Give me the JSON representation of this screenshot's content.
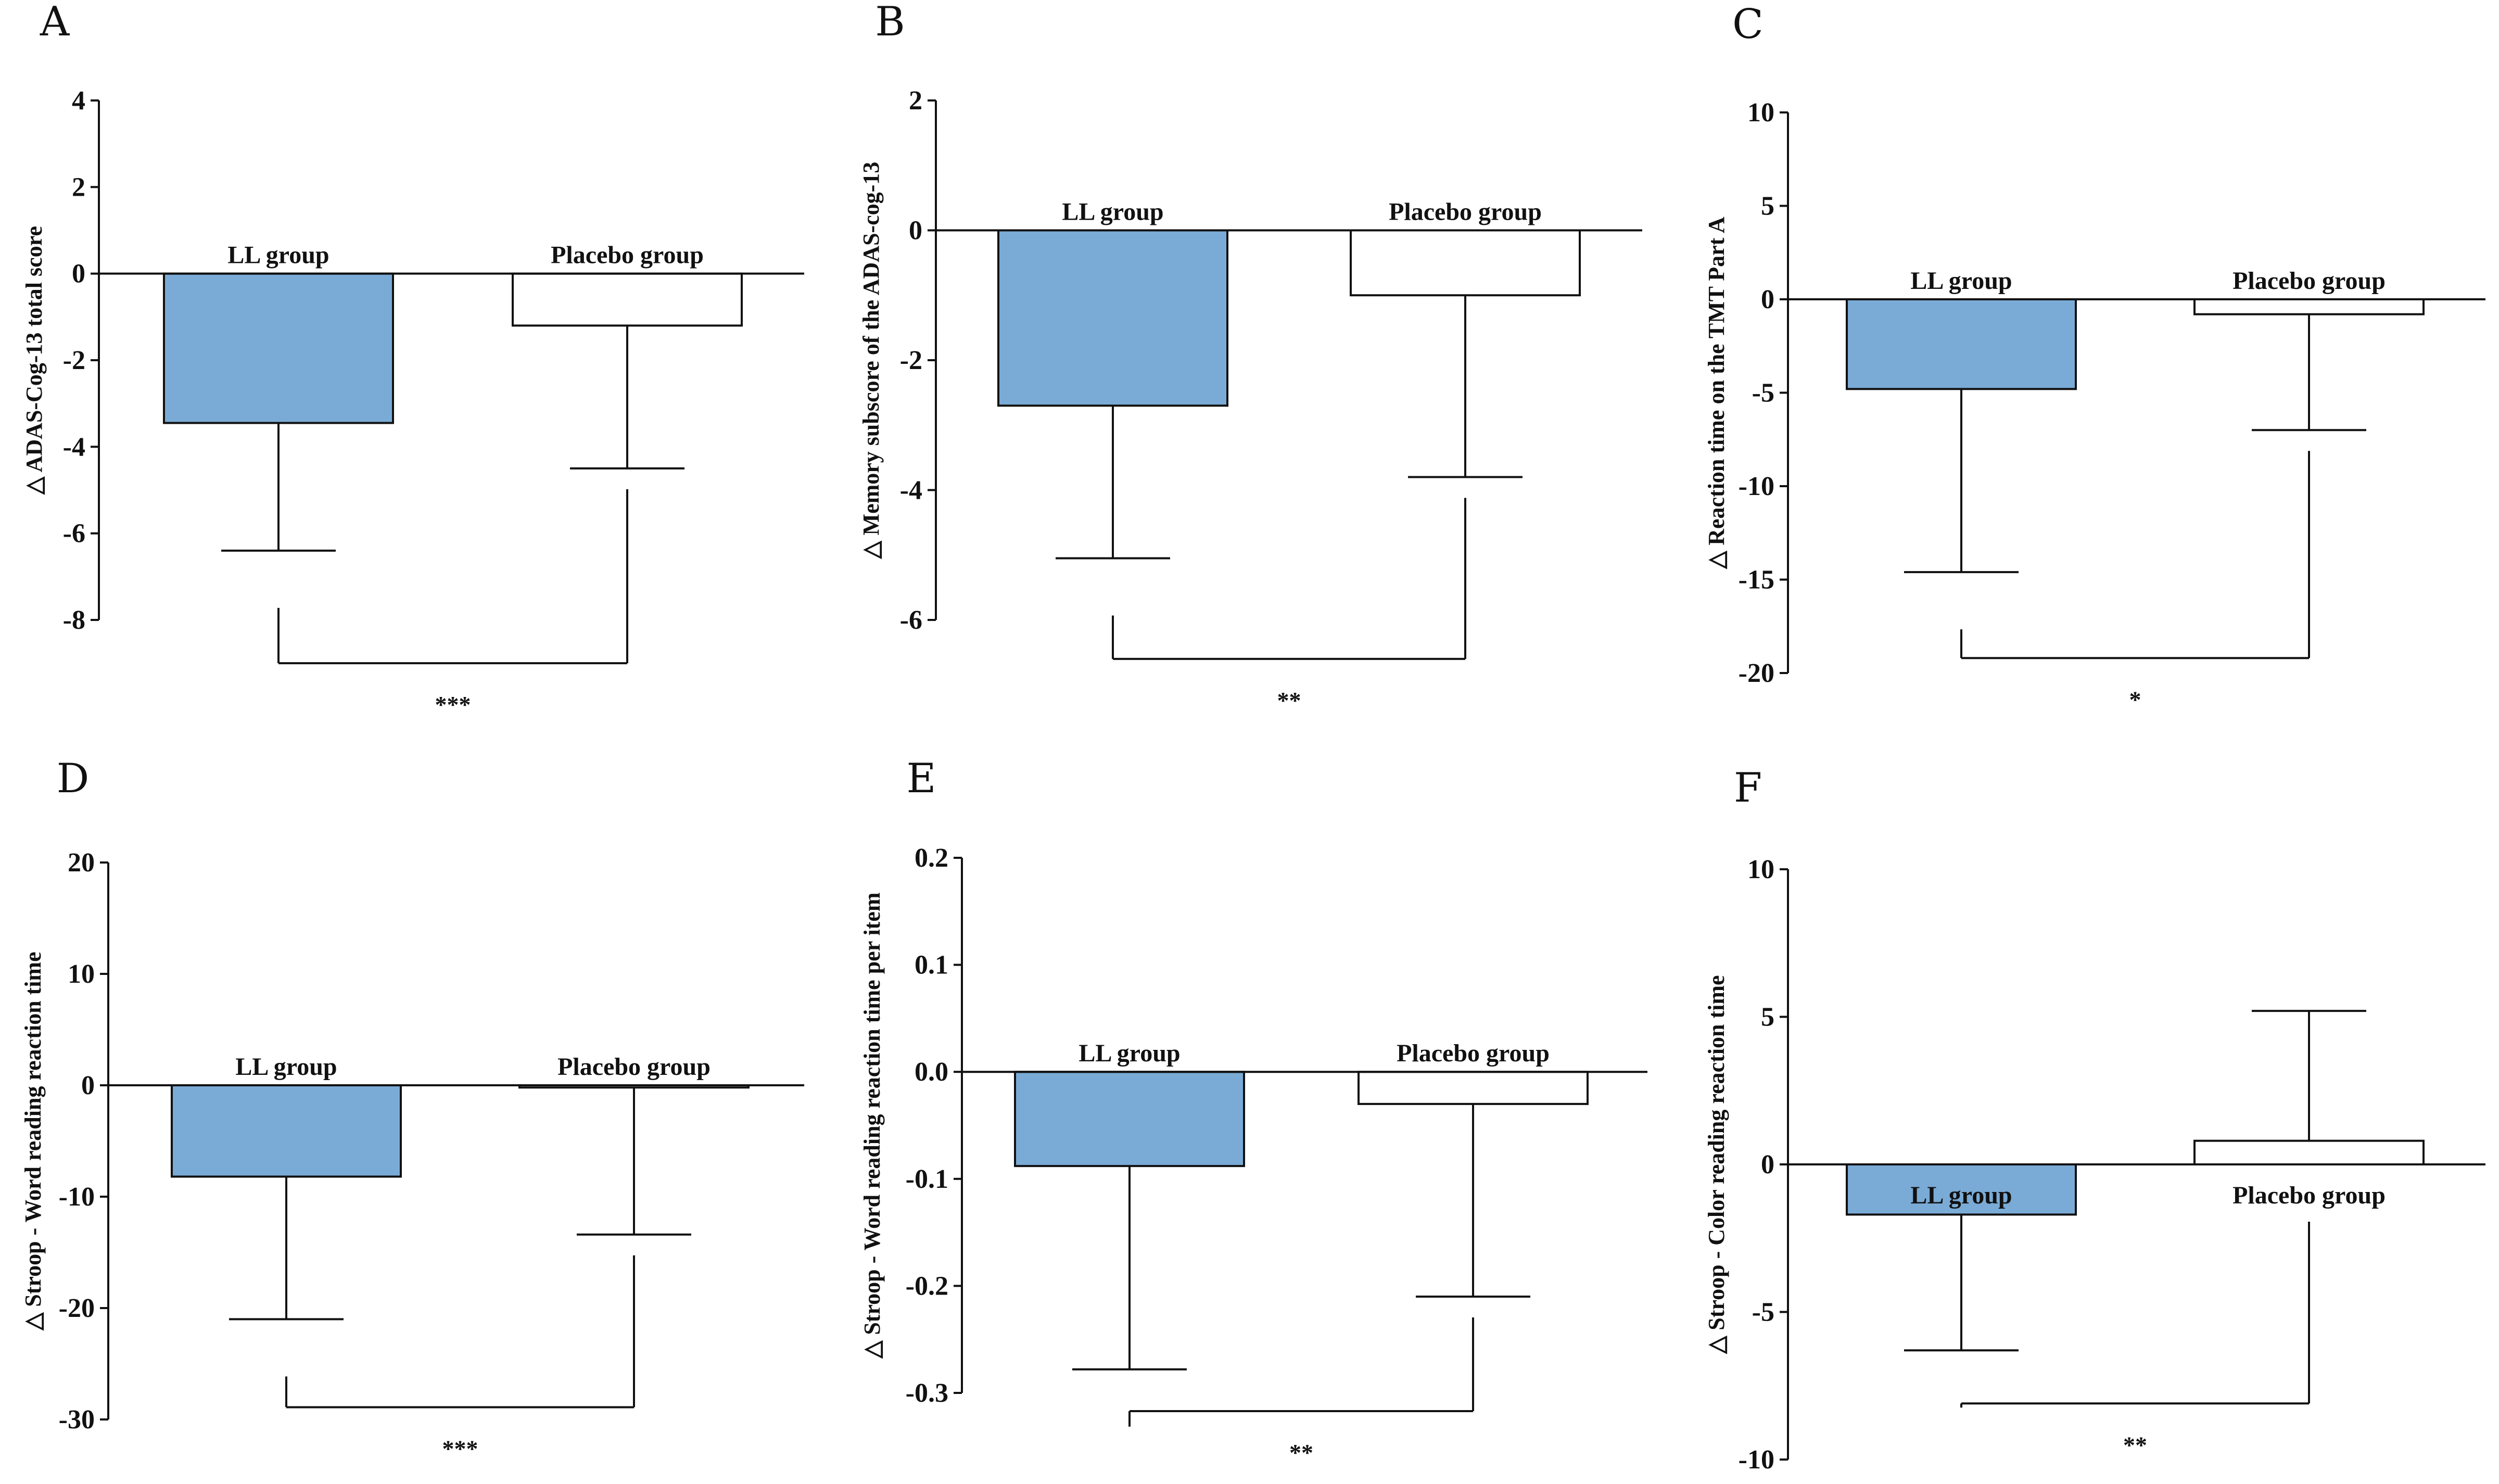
{
  "colors": {
    "ll_fill": "#7aabd6",
    "placebo_fill": "#ffffff",
    "stroke": "#111111"
  },
  "chart_data": [
    {
      "panel": "A",
      "type": "bar",
      "ylabel": "△ ADAS-Cog-13 total score",
      "ylim": [
        -8,
        4
      ],
      "yticks": [
        4,
        2,
        0,
        -2,
        -4,
        -6,
        -8
      ],
      "categories": [
        "LL group",
        "Placebo group"
      ],
      "values": [
        -3.45,
        -1.2
      ],
      "errors": [
        2.95,
        3.3
      ],
      "significance": "***",
      "bracket_y": -9.0
    },
    {
      "panel": "B",
      "type": "bar",
      "ylabel": "△ Memory subscore of the ADAS-cog-13",
      "ylim": [
        -6,
        2
      ],
      "yticks": [
        2,
        0,
        -2,
        -4,
        -6
      ],
      "categories": [
        "LL group",
        "Placebo group"
      ],
      "values": [
        -2.7,
        -1.0
      ],
      "errors": [
        2.35,
        2.8
      ],
      "significance": "**",
      "bracket_y": -6.6
    },
    {
      "panel": "C",
      "type": "bar",
      "ylabel": "△ Reaction time on the TMT Part A",
      "ylim": [
        -20,
        10
      ],
      "yticks": [
        10,
        5,
        0,
        -5,
        -10,
        -15,
        -20
      ],
      "categories": [
        "LL group",
        "Placebo group"
      ],
      "values": [
        -4.8,
        -0.8
      ],
      "errors": [
        9.8,
        6.2
      ],
      "significance": "*",
      "bracket_y": -19.2
    },
    {
      "panel": "D",
      "type": "bar",
      "ylabel": "△ Stroop - Word reading reaction time",
      "ylim": [
        -30,
        20
      ],
      "yticks": [
        20,
        10,
        0,
        -10,
        -20,
        -30
      ],
      "categories": [
        "LL group",
        "Placebo group"
      ],
      "values": [
        -8.2,
        -0.2
      ],
      "errors": [
        12.8,
        13.2
      ],
      "significance": "***",
      "bracket_y": -28.9
    },
    {
      "panel": "E",
      "type": "bar",
      "ylabel": "△ Stroop - Word reading reaction time per item",
      "ylim": [
        -0.3,
        0.2
      ],
      "yticks": [
        "0.2",
        "0.1",
        "0.0",
        "-0.1",
        "-0.2",
        "-0.3"
      ],
      "categories": [
        "LL group",
        "Placebo group"
      ],
      "values": [
        -0.088,
        -0.03
      ],
      "errors": [
        0.19,
        0.18
      ],
      "significance": "**",
      "bracket_y": -0.317
    },
    {
      "panel": "F",
      "type": "bar",
      "ylabel": "△ Stroop - Color reading reaction time",
      "ylim": [
        -10,
        10
      ],
      "yticks": [
        10,
        5,
        0,
        -5,
        -10
      ],
      "categories": [
        "LL group",
        "Placebo group"
      ],
      "values": [
        -1.7,
        0.8
      ],
      "errors": [
        4.6,
        4.4
      ],
      "significance": "**",
      "bracket_y": -8.1
    }
  ]
}
